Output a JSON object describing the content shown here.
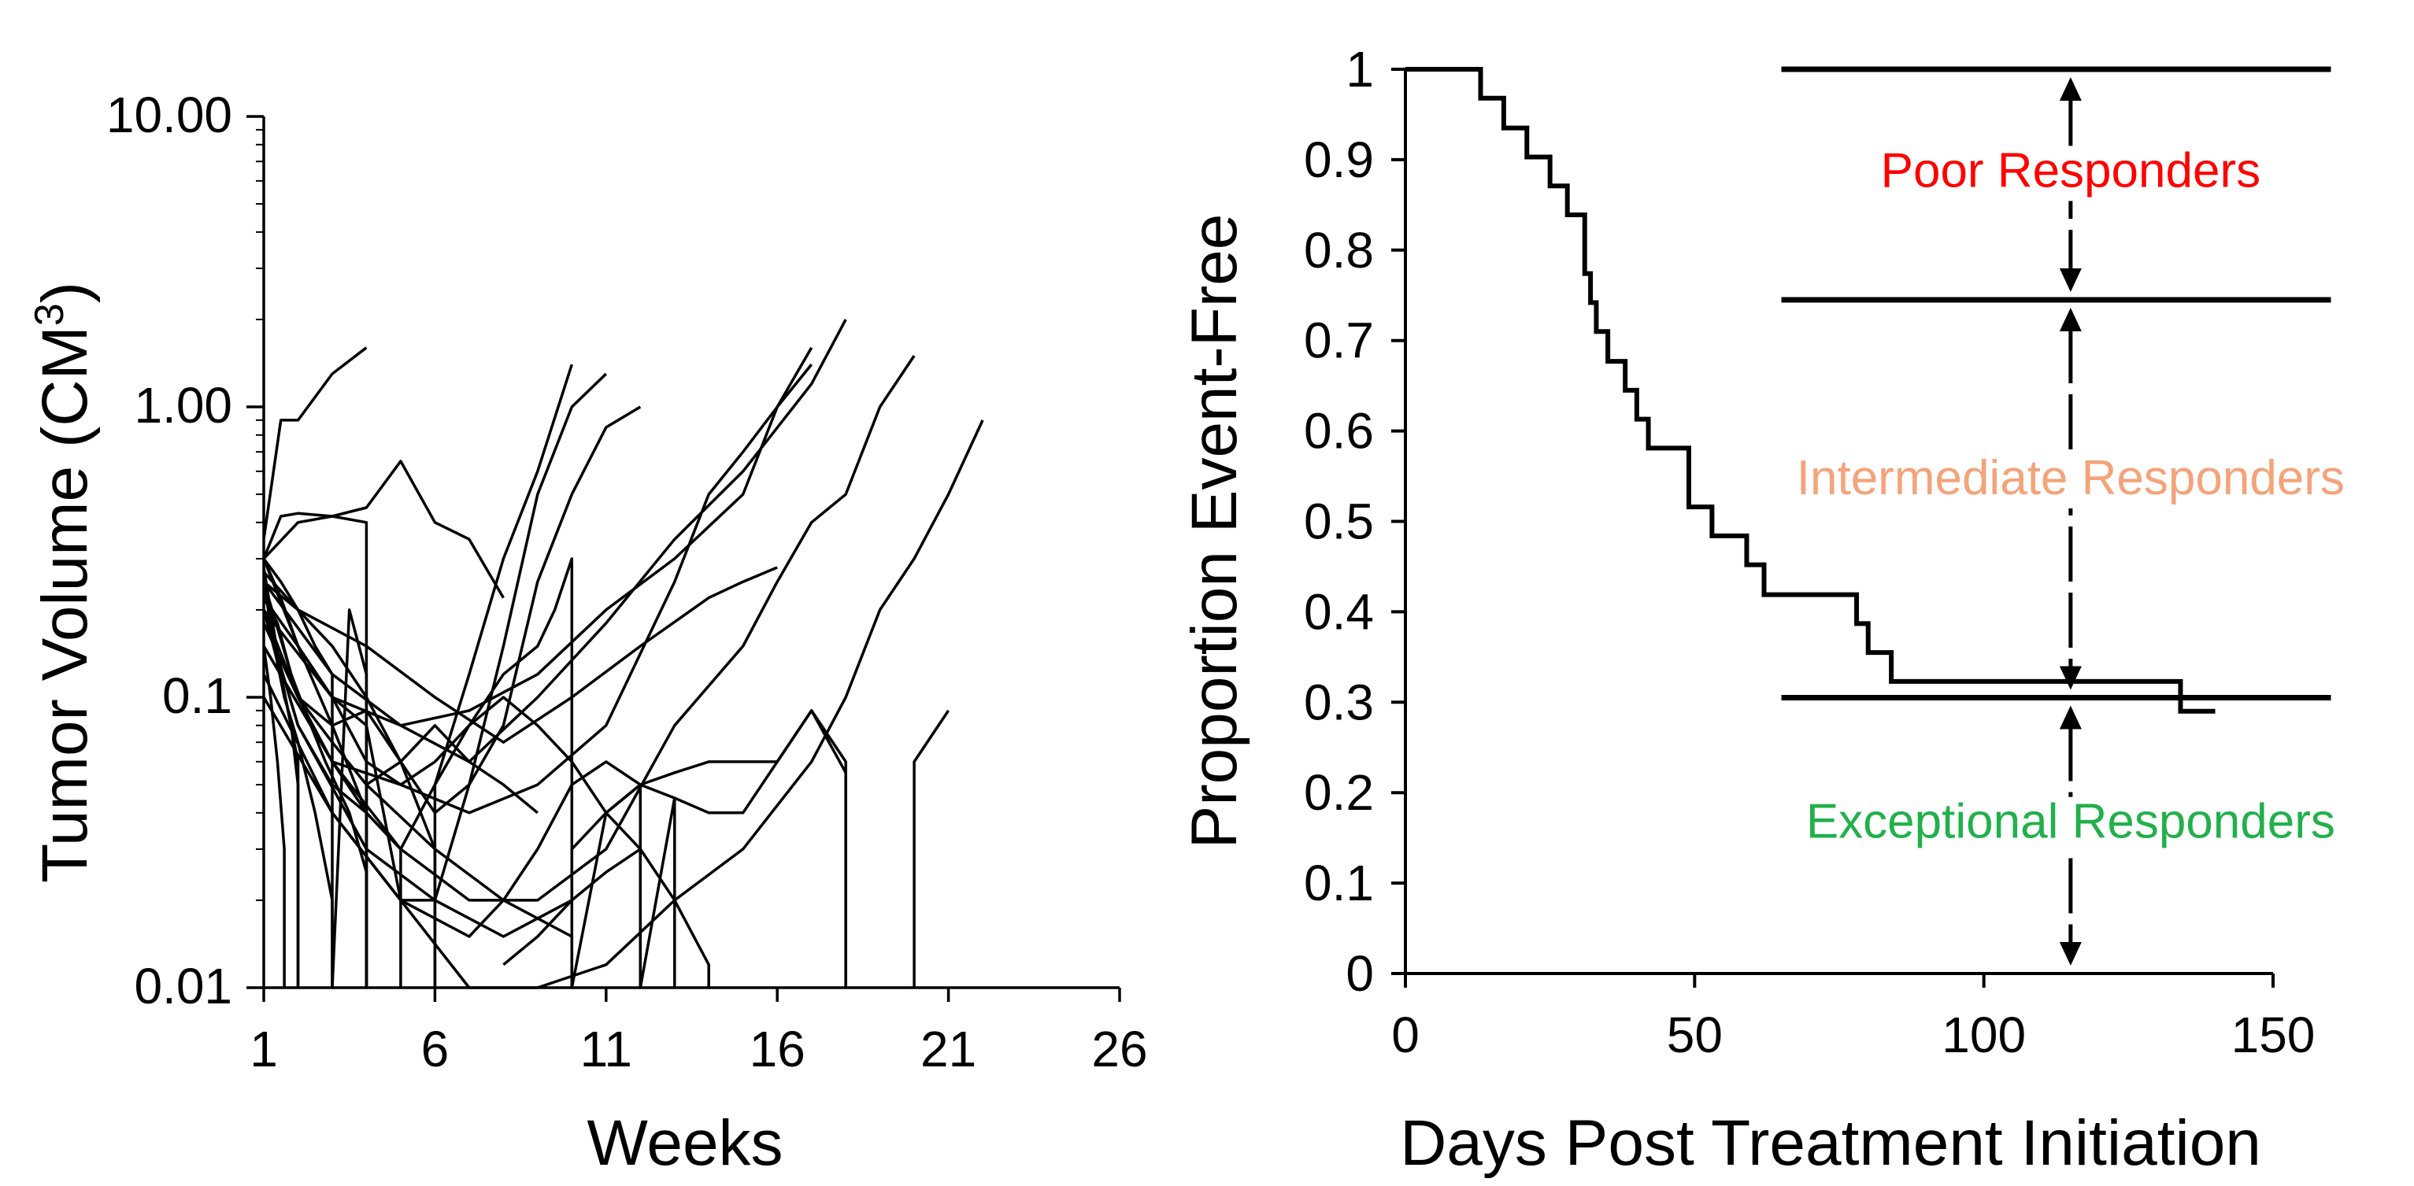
{
  "chart_data": [
    {
      "type": "line",
      "name": "tumor-volume-spaghetti",
      "ylabel": "Tumor Volume (CM",
      "ylabel_sup": "3",
      "ylabel_close": ")",
      "xlabel": "Weeks",
      "xlim": [
        1,
        26
      ],
      "xticks": [
        1,
        6,
        11,
        16,
        21,
        26
      ],
      "ylim": [
        0.01,
        10
      ],
      "yscale": "log",
      "yticks": [
        0.01,
        0.1,
        1,
        10
      ],
      "ytick_labels": [
        "0.01",
        "0.1",
        "1.00",
        "10.00"
      ],
      "series": [
        {
          "x": [
            1,
            1.5,
            2,
            3,
            4
          ],
          "y": [
            0.35,
            0.9,
            0.9,
            1.3,
            1.6
          ]
        },
        {
          "x": [
            1,
            1.5,
            2,
            3,
            4,
            5,
            6,
            7,
            8
          ],
          "y": [
            0.3,
            0.42,
            0.43,
            0.42,
            0.45,
            0.65,
            0.4,
            0.35,
            0.22
          ]
        },
        {
          "x": [
            1,
            2,
            3,
            4,
            4
          ],
          "y": [
            0.3,
            0.4,
            0.42,
            0.4,
            0.01
          ]
        },
        {
          "x": [
            1,
            2,
            3,
            4,
            5,
            6,
            7,
            8,
            9,
            10,
            11,
            12
          ],
          "y": [
            0.25,
            0.1,
            0.08,
            0.09,
            0.06,
            0.04,
            0.05,
            0.08,
            0.25,
            0.5,
            0.85,
            1.0
          ]
        },
        {
          "x": [
            1,
            2,
            3,
            4,
            5,
            6,
            7,
            8,
            9,
            10
          ],
          "y": [
            0.2,
            0.08,
            0.05,
            0.04,
            0.03,
            0.05,
            0.12,
            0.3,
            0.6,
            1.4
          ]
        },
        {
          "x": [
            1,
            2,
            3,
            4,
            5,
            6,
            7,
            8,
            9,
            10,
            11
          ],
          "y": [
            0.3,
            0.15,
            0.1,
            0.08,
            0.02,
            0.02,
            0.05,
            0.15,
            0.5,
            1.0,
            1.3
          ]
        },
        {
          "x": [
            1,
            3,
            5,
            7,
            9,
            11,
            13,
            15,
            16,
            17
          ],
          "y": [
            0.25,
            0.12,
            0.08,
            0.09,
            0.12,
            0.2,
            0.3,
            0.5,
            1.0,
            1.6
          ]
        },
        {
          "x": [
            1,
            3,
            5,
            7,
            9,
            11,
            13,
            15,
            17,
            18
          ],
          "y": [
            0.2,
            0.1,
            0.08,
            0.06,
            0.1,
            0.18,
            0.35,
            0.6,
            1.2,
            2.0
          ]
        },
        {
          "x": [
            1,
            3,
            5,
            7,
            9,
            11,
            13,
            14,
            15,
            16,
            17
          ],
          "y": [
            0.15,
            0.06,
            0.05,
            0.04,
            0.05,
            0.08,
            0.25,
            0.5,
            0.7,
            1.0,
            1.4
          ]
        },
        {
          "x": [
            1,
            3,
            5,
            7,
            9,
            11,
            13,
            15,
            16,
            17,
            18,
            19,
            20
          ],
          "y": [
            0.15,
            0.06,
            0.03,
            0.02,
            0.02,
            0.03,
            0.08,
            0.15,
            0.25,
            0.4,
            0.5,
            1.0,
            1.5
          ]
        },
        {
          "x": [
            1,
            3,
            5,
            7,
            9,
            11,
            13,
            15,
            17,
            18,
            19,
            20,
            21,
            22
          ],
          "y": [
            0.1,
            0.04,
            0.02,
            0.01,
            0.01,
            0.012,
            0.02,
            0.03,
            0.06,
            0.1,
            0.2,
            0.3,
            0.5,
            0.9
          ]
        },
        {
          "x": [
            1,
            3,
            5,
            7,
            8,
            9,
            10,
            11,
            12,
            13,
            14,
            15,
            16,
            17,
            18
          ],
          "y": [
            0.12,
            0.04,
            0.02,
            0.015,
            0.02,
            0.03,
            0.05,
            0.06,
            0.05,
            0.045,
            0.04,
            0.04,
            0.06,
            0.09,
            0.055
          ]
        },
        {
          "x": [
            18,
            18
          ],
          "y": [
            0.055,
            0.01
          ]
        },
        {
          "x": [
            20,
            20,
            21
          ],
          "y": [
            0.01,
            0.06,
            0.09
          ]
        },
        {
          "x": [
            1,
            2,
            4,
            6,
            8,
            10,
            10,
            11,
            12,
            13,
            14,
            16,
            17,
            18,
            18
          ],
          "y": [
            0.2,
            0.08,
            0.03,
            0.02,
            0.015,
            0.02,
            0.03,
            0.04,
            0.05,
            0.055,
            0.06,
            0.06,
            0.09,
            0.06,
            0.01
          ]
        },
        {
          "x": [
            1,
            1.5,
            2,
            2.5,
            3,
            3,
            3.5,
            4,
            4
          ],
          "y": [
            0.3,
            0.25,
            0.2,
            0.15,
            0.12,
            0.01,
            0.2,
            0.12,
            0.01
          ]
        },
        {
          "x": [
            1,
            1.2,
            1.5,
            1.8,
            2,
            2
          ],
          "y": [
            0.28,
            0.2,
            0.12,
            0.08,
            0.05,
            0.01
          ]
        },
        {
          "x": [
            1,
            1.3,
            1.6,
            2,
            2.5,
            3,
            3
          ],
          "y": [
            0.25,
            0.15,
            0.1,
            0.07,
            0.04,
            0.02,
            0.01
          ]
        },
        {
          "x": [
            1,
            1.4,
            1.8,
            2.2,
            2.8,
            3.5,
            4,
            4
          ],
          "y": [
            0.22,
            0.18,
            0.12,
            0.09,
            0.06,
            0.04,
            0.025,
            0.01
          ]
        },
        {
          "x": [
            1,
            1.5,
            2,
            3,
            4,
            4
          ],
          "y": [
            0.3,
            0.22,
            0.15,
            0.08,
            0.04,
            0.01
          ]
        },
        {
          "x": [
            1,
            2,
            3,
            4,
            5,
            5
          ],
          "y": [
            0.2,
            0.1,
            0.06,
            0.04,
            0.03,
            0.01
          ]
        },
        {
          "x": [
            1,
            2,
            3,
            4,
            5,
            6,
            6
          ],
          "y": [
            0.25,
            0.2,
            0.15,
            0.1,
            0.06,
            0.03,
            0.01
          ]
        },
        {
          "x": [
            1,
            1.5,
            2,
            2
          ],
          "y": [
            0.2,
            0.12,
            0.06,
            0.01
          ]
        },
        {
          "x": [
            1,
            1.2,
            1.4,
            1.6,
            1.6
          ],
          "y": [
            0.15,
            0.1,
            0.06,
            0.03,
            0.01
          ]
        },
        {
          "x": [
            1,
            2,
            3,
            4,
            6,
            8,
            10,
            10
          ],
          "y": [
            0.18,
            0.1,
            0.07,
            0.05,
            0.03,
            0.02,
            0.015,
            0.01
          ]
        },
        {
          "x": [
            4,
            4,
            5,
            6,
            7,
            8,
            9
          ],
          "y": [
            0.01,
            0.05,
            0.06,
            0.08,
            0.06,
            0.05,
            0.04
          ]
        },
        {
          "x": [
            6,
            6,
            7,
            8,
            9,
            9.5,
            10,
            10
          ],
          "y": [
            0.01,
            0.05,
            0.08,
            0.12,
            0.15,
            0.2,
            0.3,
            0.01
          ]
        },
        {
          "x": [
            10,
            11,
            12,
            12,
            13,
            13
          ],
          "y": [
            0.01,
            0.04,
            0.05,
            0.01,
            0.045,
            0.01
          ]
        },
        {
          "x": [
            8,
            9,
            10,
            11,
            12,
            13,
            14,
            14
          ],
          "y": [
            0.012,
            0.015,
            0.02,
            0.025,
            0.03,
            0.02,
            0.012,
            0.01
          ]
        },
        {
          "x": [
            1,
            2,
            3,
            4,
            5,
            6,
            7,
            8,
            9,
            10,
            11,
            12,
            12
          ],
          "y": [
            0.22,
            0.15,
            0.1,
            0.06,
            0.05,
            0.06,
            0.08,
            0.1,
            0.08,
            0.06,
            0.04,
            0.03,
            0.01
          ]
        },
        {
          "x": [
            1,
            2,
            4,
            6,
            8,
            10,
            12,
            14,
            15,
            16
          ],
          "y": [
            0.27,
            0.2,
            0.15,
            0.1,
            0.07,
            0.1,
            0.15,
            0.22,
            0.25,
            0.28
          ]
        }
      ]
    },
    {
      "type": "line",
      "name": "kaplan-meier",
      "ylabel": "Proportion Event-Free",
      "xlabel": "Days Post Treatment Initiation",
      "xlim": [
        0,
        150
      ],
      "xticks": [
        0,
        50,
        100,
        150
      ],
      "ylim": [
        0,
        1
      ],
      "yticks": [
        0,
        0.1,
        0.2,
        0.3,
        0.4,
        0.5,
        0.6,
        0.7,
        0.8,
        0.9,
        1
      ],
      "ytick_labels": [
        "0",
        "0.1",
        "0.2",
        "0.3",
        "0.4",
        "0.5",
        "0.6",
        "0.7",
        "0.8",
        "0.9",
        "1"
      ],
      "step_curve": {
        "x": [
          0,
          13,
          17,
          21,
          25,
          28,
          31,
          32,
          33,
          35,
          38,
          40,
          42,
          49,
          53,
          59,
          62,
          78,
          80,
          84,
          87,
          134,
          140
        ],
        "y": [
          1,
          0.968,
          0.935,
          0.903,
          0.871,
          0.839,
          0.774,
          0.742,
          0.71,
          0.677,
          0.645,
          0.613,
          0.581,
          0.516,
          0.484,
          0.452,
          0.419,
          0.387,
          0.355,
          0.323,
          0.323,
          0.29,
          0.29
        ]
      },
      "threshold_lines": [
        {
          "y": 1.0,
          "x_start": 65,
          "x_end": 160
        },
        {
          "y": 0.745,
          "x_start": 65,
          "x_end": 160
        },
        {
          "y": 0.305,
          "x_start": 65,
          "x_end": 160
        }
      ],
      "arrow_x": 115,
      "annotations": [
        {
          "text": "Poor Responders",
          "color": "#ff0000",
          "y": 0.87
        },
        {
          "text": "Intermediate Responders",
          "color": "#f4a37a",
          "y": 0.53
        },
        {
          "text": "Exceptional Responders",
          "color": "#22b04b",
          "y": 0.15
        }
      ]
    }
  ]
}
